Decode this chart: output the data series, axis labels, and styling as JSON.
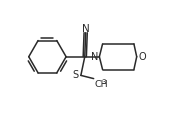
{
  "background_color": "#ffffff",
  "line_color": "#2a2a2a",
  "line_width": 1.1,
  "figure_width": 1.82,
  "figure_height": 1.17,
  "dpi": 100,
  "xlim": [
    0,
    10
  ],
  "ylim": [
    0,
    6.5
  ]
}
